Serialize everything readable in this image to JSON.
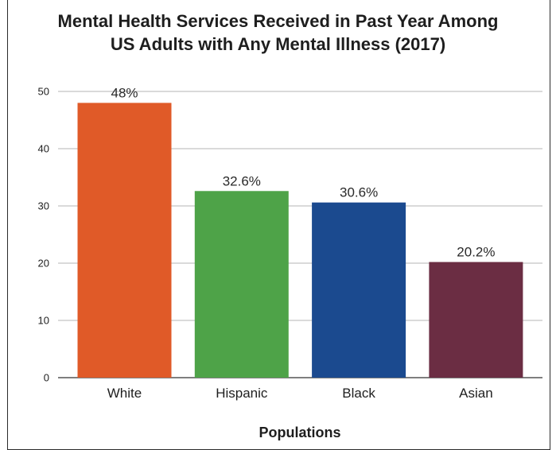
{
  "chart_data": {
    "type": "bar",
    "title_lines": [
      "Mental Health Services Received in Past Year Among",
      "US Adults with Any Mental Illness (2017)"
    ],
    "xlabel": "Populations",
    "ylabel": "",
    "categories": [
      "White",
      "Hispanic",
      "Black",
      "Asian"
    ],
    "values": [
      48,
      32.6,
      30.6,
      20.2
    ],
    "data_labels": [
      "48%",
      "32.6%",
      "30.6%",
      "20.2%"
    ],
    "colors": [
      "#e05a28",
      "#4ea348",
      "#1b4a8f",
      "#6b2d43"
    ],
    "ylim": [
      0,
      50
    ],
    "yticks": [
      0,
      10,
      20,
      30,
      40,
      50
    ],
    "grid": true,
    "legend": "none"
  }
}
